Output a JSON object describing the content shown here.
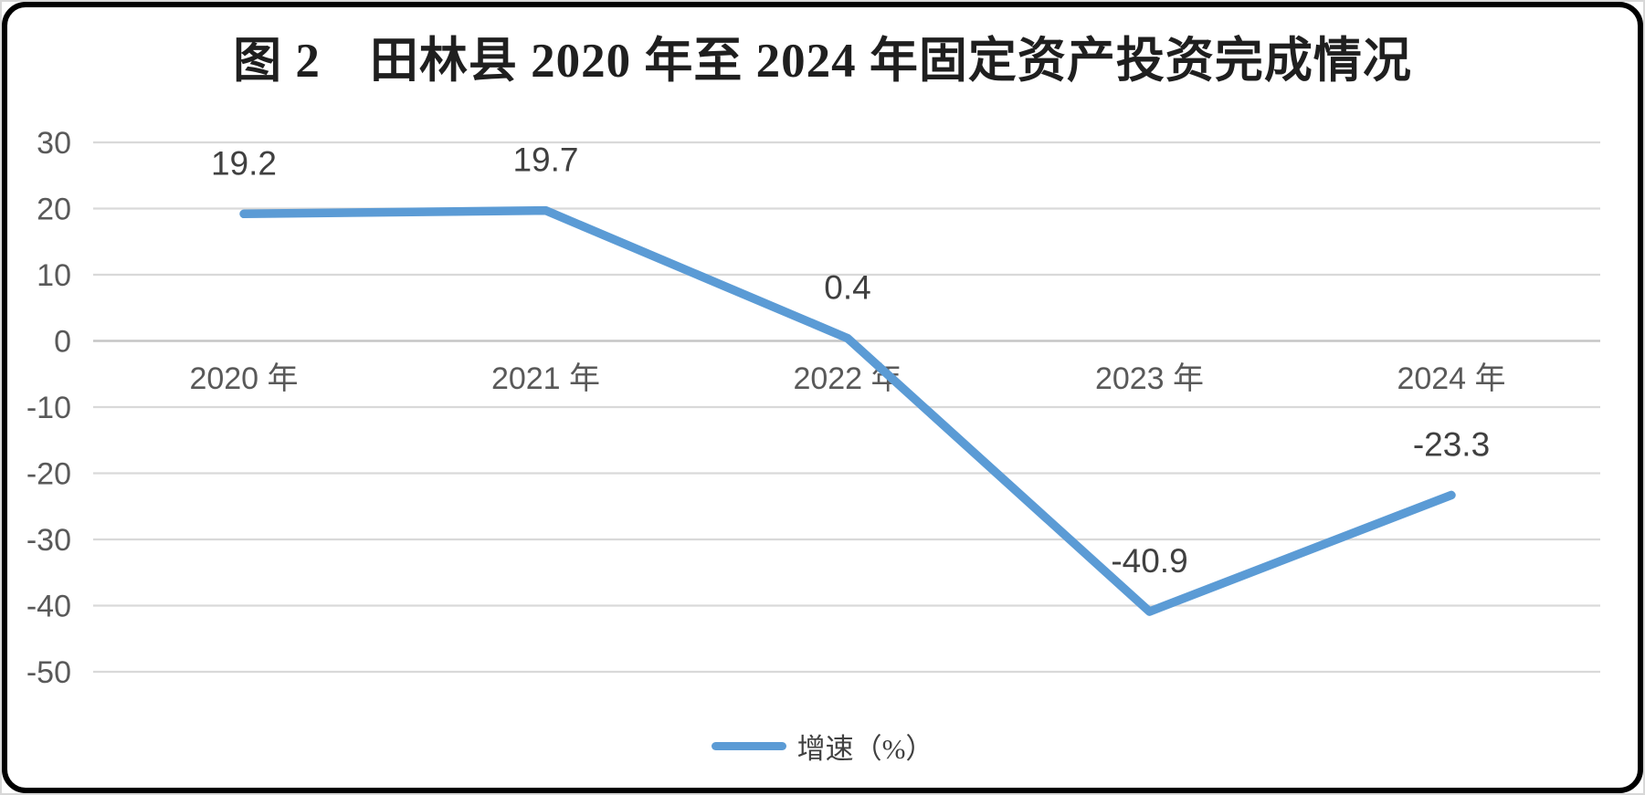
{
  "chart_data": {
    "type": "line",
    "title": "图 2　田林县 2020 年至 2024 年固定资产投资完成情况",
    "categories": [
      "2020 年",
      "2021 年",
      "2022 年",
      "2023 年",
      "2024 年"
    ],
    "series": [
      {
        "name": "增速（%）",
        "values": [
          19.2,
          19.7,
          0.4,
          -40.9,
          -23.3
        ]
      }
    ],
    "yticks": [
      30,
      20,
      10,
      0,
      -10,
      -20,
      -30,
      -40,
      -50
    ],
    "ylim": [
      -50,
      30
    ],
    "grid": true,
    "legend_position": "bottom",
    "colors": {
      "line": "#5B9BD5",
      "gridline": "#D9D9D9",
      "zero_axis_line": "#C6C6C6",
      "tick_label": "#595959",
      "data_label": "#404040",
      "title": "#1F1F1F",
      "frame_border": "#000000"
    }
  }
}
